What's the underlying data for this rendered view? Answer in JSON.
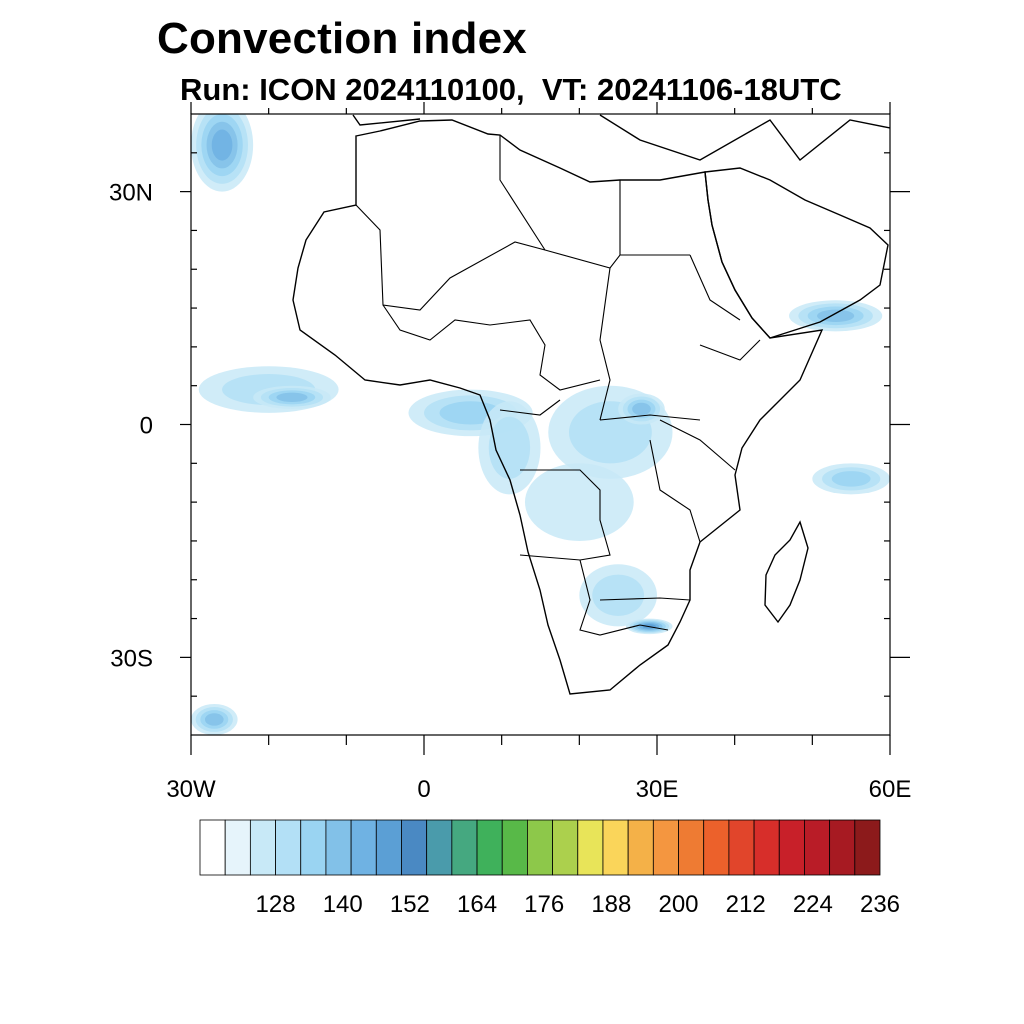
{
  "title": "Convection index",
  "subtitle": "Run: ICON 2024110100,  VT: 20241106-18UTC",
  "map": {
    "lon_range": [
      -30,
      60
    ],
    "lat_range": [
      -40,
      40
    ],
    "lat_labels": [
      {
        "lat": 30,
        "text": "30N"
      },
      {
        "lat": 0,
        "text": "0"
      },
      {
        "lat": -30,
        "text": "30S"
      }
    ],
    "lon_labels": [
      {
        "lon": -30,
        "text": "30W"
      },
      {
        "lon": 0,
        "text": "0"
      },
      {
        "lon": 30,
        "text": "30E"
      },
      {
        "lon": 60,
        "text": "60E"
      }
    ],
    "lat_minor_ticks": [
      -35,
      -25,
      -20,
      -15,
      -10,
      -5,
      5,
      10,
      15,
      20,
      25,
      35
    ],
    "lon_minor_ticks": [
      -20,
      -10,
      10,
      20,
      40,
      50
    ],
    "convection_blobs": [
      {
        "lon": -20,
        "lat": 4.5,
        "rlon": 9,
        "rlat": 3,
        "level": 2
      },
      {
        "lon": -17,
        "lat": 3.5,
        "rlon": 5,
        "rlat": 1.5,
        "level": 4
      },
      {
        "lon": -26,
        "lat": 36,
        "rlon": 4,
        "rlat": 6,
        "level": 5
      },
      {
        "lon": 6,
        "lat": 1.5,
        "rlon": 8,
        "rlat": 3,
        "level": 3
      },
      {
        "lon": 11,
        "lat": -3,
        "rlon": 4,
        "rlat": 6,
        "level": 2
      },
      {
        "lon": 24,
        "lat": -1,
        "rlon": 8,
        "rlat": 6,
        "level": 2
      },
      {
        "lon": 28,
        "lat": 2,
        "rlon": 3,
        "rlat": 2,
        "level": 4
      },
      {
        "lon": 20,
        "lat": -10,
        "rlon": 7,
        "rlat": 5,
        "level": 1
      },
      {
        "lon": 25,
        "lat": -22,
        "rlon": 5,
        "rlat": 4,
        "level": 2
      },
      {
        "lon": 29,
        "lat": -26,
        "rlon": 3,
        "rlat": 1,
        "level": 6
      },
      {
        "lon": 53,
        "lat": 14,
        "rlon": 6,
        "rlat": 2,
        "level": 4
      },
      {
        "lon": 55,
        "lat": -7,
        "rlon": 5,
        "rlat": 2,
        "level": 3
      },
      {
        "lon": -27,
        "lat": -38,
        "rlon": 3,
        "rlat": 2,
        "level": 4
      }
    ]
  },
  "colorbar": {
    "colors": [
      "#ffffff",
      "#e6f4fb",
      "#c8e9f7",
      "#b3e0f6",
      "#9ad4f2",
      "#82c1e8",
      "#6fb2e3",
      "#5b9fd5",
      "#4a89c3",
      "#4a9bab",
      "#45a880",
      "#3fb15b",
      "#58b948",
      "#8dc84a",
      "#acd04d",
      "#e8e459",
      "#fad55a",
      "#f4b148",
      "#f49640",
      "#ee7b33",
      "#ec612b",
      "#e1452b",
      "#d72e2a",
      "#c82029",
      "#b91c27",
      "#a71a22",
      "#8c1a1b"
    ],
    "labels": [
      "128",
      "140",
      "152",
      "164",
      "176",
      "188",
      "200",
      "212",
      "224",
      "236"
    ]
  }
}
